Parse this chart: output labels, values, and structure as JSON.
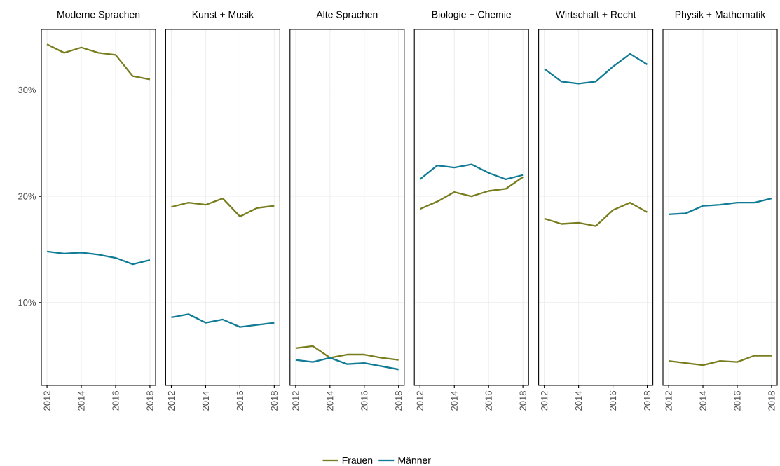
{
  "chart_data": [
    {
      "type": "line",
      "title": "Moderne Sprachen",
      "x": [
        2012,
        2013,
        2014,
        2015,
        2016,
        2017,
        2018
      ],
      "xlim": [
        2011.67,
        2018.33
      ],
      "xticks": [
        2012,
        2014,
        2016,
        2018
      ],
      "ylim": [
        2.2,
        35.7
      ],
      "yticks": [
        {
          "value": 10,
          "label": "10%"
        },
        {
          "value": 20,
          "label": "20%"
        },
        {
          "value": 30,
          "label": "30%"
        }
      ],
      "grid": true,
      "legend": "bottom",
      "series": [
        {
          "name": "Frauen",
          "color": "#787d1e",
          "values": [
            34.3,
            33.5,
            34.0,
            33.5,
            33.3,
            31.3,
            31.0
          ]
        },
        {
          "name": "Männer",
          "color": "#0f7b94",
          "values": [
            14.8,
            14.6,
            14.7,
            14.5,
            14.2,
            13.6,
            14.0
          ]
        }
      ]
    },
    {
      "type": "line",
      "title": "Kunst + Musik",
      "x": [
        2012,
        2013,
        2014,
        2015,
        2016,
        2017,
        2018
      ],
      "xlim": [
        2011.67,
        2018.33
      ],
      "xticks": [
        2012,
        2014,
        2016,
        2018
      ],
      "ylim": [
        2.2,
        35.7
      ],
      "yticks": [
        10,
        20,
        30
      ],
      "grid": true,
      "tick_labels": "x",
      "series": [
        {
          "color": "#787d1e",
          "values": [
            19.0,
            19.4,
            19.2,
            19.8,
            18.1,
            18.9,
            19.1
          ]
        },
        {
          "color": "#0f7b94",
          "values": [
            8.6,
            8.9,
            8.1,
            8.4,
            7.7,
            7.9,
            8.1
          ]
        }
      ]
    },
    {
      "type": "line",
      "title": "Alte Sprachen",
      "x": [
        2012,
        2013,
        2014,
        2015,
        2016,
        2017,
        2018
      ],
      "xlim": [
        2011.67,
        2018.33
      ],
      "xticks": [
        2012,
        2014,
        2016,
        2018
      ],
      "ylim": [
        2.2,
        35.7
      ],
      "yticks": [
        10,
        20,
        30
      ],
      "grid": true,
      "tick_labels": "x",
      "series": [
        {
          "color": "#787d1e",
          "values": [
            5.7,
            5.9,
            4.8,
            5.1,
            5.1,
            4.8,
            4.6
          ]
        },
        {
          "color": "#0f7b94",
          "values": [
            4.6,
            4.4,
            4.8,
            4.2,
            4.3,
            4.0,
            3.7
          ]
        }
      ]
    },
    {
      "type": "line",
      "title": "Biologie + Chemie",
      "x": [
        2012,
        2013,
        2014,
        2015,
        2016,
        2017,
        2018
      ],
      "xlim": [
        2011.67,
        2018.33
      ],
      "xticks": [
        2012,
        2014,
        2016,
        2018
      ],
      "ylim": [
        2.2,
        35.7
      ],
      "yticks": [
        10,
        20,
        30
      ],
      "grid": true,
      "tick_labels": "x",
      "series": [
        {
          "color": "#787d1e",
          "values": [
            18.8,
            19.5,
            20.4,
            20.0,
            20.5,
            20.7,
            21.8
          ]
        },
        {
          "color": "#0f7b94",
          "values": [
            21.6,
            22.9,
            22.7,
            23.0,
            22.2,
            21.6,
            22.0
          ]
        }
      ]
    },
    {
      "type": "line",
      "title": "Wirtschaft + Recht",
      "x": [
        2012,
        2013,
        2014,
        2015,
        2016,
        2017,
        2018
      ],
      "xlim": [
        2011.67,
        2018.33
      ],
      "xticks": [
        2012,
        2014,
        2016,
        2018
      ],
      "ylim": [
        2.2,
        35.7
      ],
      "yticks": [
        10,
        20,
        30
      ],
      "grid": true,
      "tick_labels": "x",
      "series": [
        {
          "color": "#787d1e",
          "values": [
            17.9,
            17.4,
            17.5,
            17.2,
            18.7,
            19.4,
            18.5
          ]
        },
        {
          "color": "#0f7b94",
          "values": [
            32.0,
            30.8,
            30.6,
            30.8,
            32.2,
            33.4,
            32.4
          ]
        }
      ]
    },
    {
      "type": "line",
      "title": "Physik + Mathematik",
      "x": [
        2012,
        2013,
        2014,
        2015,
        2016,
        2017,
        2018
      ],
      "xlim": [
        2011.67,
        2018.33
      ],
      "xticks": [
        2012,
        2014,
        2016,
        2018
      ],
      "ylim": [
        2.2,
        35.7
      ],
      "yticks": [
        10,
        20,
        30
      ],
      "grid": true,
      "tick_labels": "x",
      "series": [
        {
          "color": "#787d1e",
          "values": [
            4.5,
            4.3,
            4.1,
            4.5,
            4.4,
            5.0,
            5.0
          ]
        },
        {
          "color": "#0f7b94",
          "values": [
            18.3,
            18.4,
            19.1,
            19.2,
            19.4,
            19.4,
            19.8
          ]
        }
      ]
    }
  ]
}
